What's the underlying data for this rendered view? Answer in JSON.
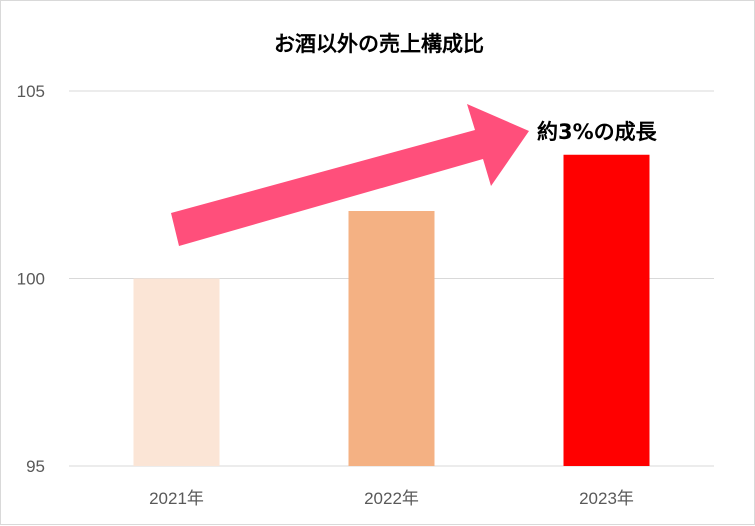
{
  "chart_data": {
    "type": "bar",
    "title": "お酒以外の売上構成比",
    "categories": [
      "2021年",
      "2022年",
      "2023年"
    ],
    "values": [
      100,
      101.8,
      103.3
    ],
    "ylim": [
      95,
      105
    ],
    "yticks": [
      95,
      100,
      105
    ],
    "grid": true,
    "colors": [
      "#FBE5D6",
      "#F4B183",
      "#FF0000"
    ],
    "annotation": {
      "text": "約3%の成長",
      "arrow_color": "#FF4F7B"
    }
  }
}
